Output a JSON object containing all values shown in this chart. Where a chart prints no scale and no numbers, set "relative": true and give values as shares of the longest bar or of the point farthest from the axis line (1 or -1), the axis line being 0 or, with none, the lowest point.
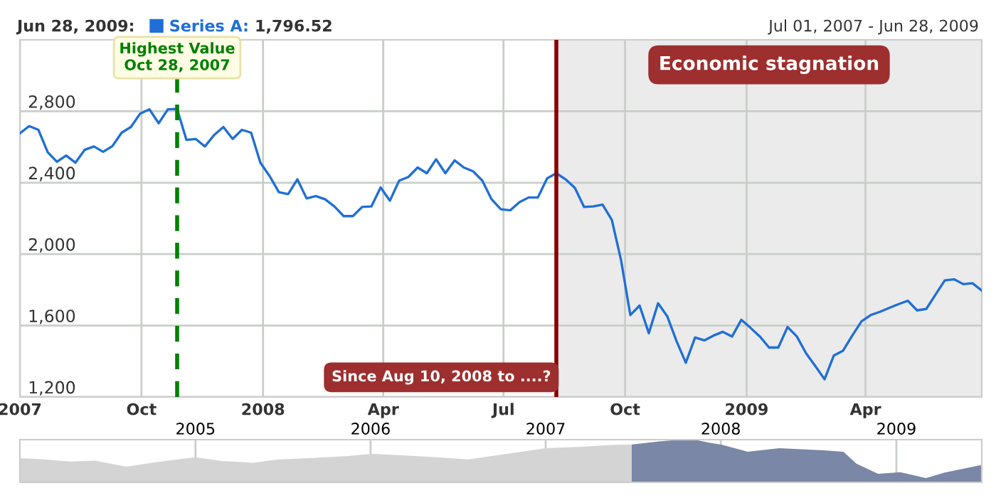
{
  "chart_data": [
    {
      "type": "line",
      "title": "Jun 28, 2009:",
      "subtitle": "Jul 01, 2007 - Jun 28, 2009",
      "annotations": [
        "1,796.52"
      ],
      "x": [
        "2007-07-01",
        "2007-07-08",
        "2007-07-15",
        "2007-07-22",
        "2007-07-29",
        "2007-08-05",
        "2007-08-12",
        "2007-08-19",
        "2007-08-26",
        "2007-09-02",
        "2007-09-09",
        "2007-09-16",
        "2007-09-23",
        "2007-09-30",
        "2007-10-07",
        "2007-10-14",
        "2007-10-21",
        "2007-10-28",
        "2007-11-04",
        "2007-11-11",
        "2007-11-18",
        "2007-11-25",
        "2007-12-02",
        "2007-12-09",
        "2007-12-16",
        "2007-12-23",
        "2007-12-30",
        "2008-01-06",
        "2008-01-13",
        "2008-01-20",
        "2008-01-27",
        "2008-02-03",
        "2008-02-10",
        "2008-02-17",
        "2008-02-24",
        "2008-03-02",
        "2008-03-09",
        "2008-03-16",
        "2008-03-23",
        "2008-03-30",
        "2008-04-06",
        "2008-04-13",
        "2008-04-20",
        "2008-04-27",
        "2008-05-04",
        "2008-05-11",
        "2008-05-18",
        "2008-05-25",
        "2008-06-01",
        "2008-06-08",
        "2008-06-15",
        "2008-06-22",
        "2008-06-29",
        "2008-07-06",
        "2008-07-13",
        "2008-07-20",
        "2008-07-27",
        "2008-08-03",
        "2008-08-10",
        "2008-08-17",
        "2008-08-24",
        "2008-08-31",
        "2008-09-07",
        "2008-09-14",
        "2008-09-21",
        "2008-09-28",
        "2008-10-05",
        "2008-10-12",
        "2008-10-19",
        "2008-10-26",
        "2008-11-02",
        "2008-11-09",
        "2008-11-16",
        "2008-11-23",
        "2008-11-30",
        "2008-12-07",
        "2008-12-14",
        "2008-12-21",
        "2008-12-28",
        "2009-01-04",
        "2009-01-11",
        "2009-01-18",
        "2009-01-25",
        "2009-02-01",
        "2009-02-08",
        "2009-02-15",
        "2009-02-22",
        "2009-03-01",
        "2009-03-08",
        "2009-03-15",
        "2009-03-22",
        "2009-03-29",
        "2009-04-05",
        "2009-04-12",
        "2009-04-19",
        "2009-04-26",
        "2009-05-03",
        "2009-05-10",
        "2009-05-17",
        "2009-05-24",
        "2009-05-31",
        "2009-06-07",
        "2009-06-14",
        "2009-06-21",
        "2009-06-28"
      ],
      "series": [
        {
          "name": "Series A:",
          "color": "#1f6fd6",
          "values": [
            2677,
            2717,
            2696,
            2571,
            2517,
            2552,
            2512,
            2584,
            2603,
            2573,
            2605,
            2680,
            2712,
            2787,
            2811,
            2733,
            2811,
            2813,
            2640,
            2645,
            2603,
            2667,
            2712,
            2645,
            2696,
            2680,
            2512,
            2437,
            2347,
            2336,
            2419,
            2312,
            2325,
            2307,
            2267,
            2213,
            2213,
            2264,
            2267,
            2373,
            2299,
            2411,
            2432,
            2485,
            2453,
            2531,
            2453,
            2525,
            2485,
            2464,
            2411,
            2307,
            2251,
            2245,
            2291,
            2317,
            2317,
            2424,
            2453,
            2419,
            2371,
            2264,
            2267,
            2277,
            2192,
            1965,
            1659,
            1712,
            1557,
            1725,
            1651,
            1512,
            1392,
            1533,
            1517,
            1544,
            1565,
            1539,
            1632,
            1587,
            1539,
            1477,
            1477,
            1592,
            1539,
            1445,
            1373,
            1299,
            1432,
            1459,
            1544,
            1624,
            1659,
            1677,
            1699,
            1720,
            1739,
            1685,
            1693,
            1773,
            1853,
            1859,
            1832,
            1837,
            1796.52
          ]
        }
      ],
      "xlim": [
        "2007-07-01",
        "2009-06-28"
      ],
      "xticks": [
        {
          "value": "2007-07-01",
          "label": "2007"
        },
        {
          "value": "2007-10-01",
          "label": "Oct"
        },
        {
          "value": "2008-01-01",
          "label": "2008"
        },
        {
          "value": "2008-04-01",
          "label": "Apr"
        },
        {
          "value": "2008-07-01",
          "label": "Jul"
        },
        {
          "value": "2008-10-01",
          "label": "Oct"
        },
        {
          "value": "2009-01-01",
          "label": "2009"
        },
        {
          "value": "2009-04-01",
          "label": "Apr"
        }
      ],
      "ylim": [
        1200,
        3200
      ],
      "yticks": [
        {
          "value": 1200,
          "label": "1,200"
        },
        {
          "value": 1600,
          "label": "1,600"
        },
        {
          "value": 2000,
          "label": "2,000"
        },
        {
          "value": 2400,
          "label": "2,400"
        },
        {
          "value": 2800,
          "label": "2,800"
        }
      ],
      "grid": true,
      "legend": "top left",
      "bands": [
        {
          "axis": "x",
          "from": "2008-08-10",
          "to": "2009-06-28",
          "label": "Economic stagnation",
          "color": "#ebebeb"
        }
      ],
      "ref_lines": [
        {
          "axis": "x",
          "value": "2007-10-28",
          "label": "Highest Value\nOct 28, 2007",
          "color": "#008000",
          "line_style": "dashed"
        },
        {
          "axis": "x",
          "value": "2008-08-10",
          "label": "Since Aug 10, 2008 to ....?",
          "color": "#8b0000",
          "line_style": "solid"
        }
      ]
    },
    {
      "type": "area",
      "relative": true,
      "series": [
        {
          "color": "#d4d4d4",
          "x": [
            "2004-01-01",
            "2004-02-20",
            "2004-04-14",
            "2004-06-05",
            "2004-08-10",
            "2004-10-02",
            "2005-01-01",
            "2005-02-25",
            "2005-05-01",
            "2005-06-23",
            "2005-08-28",
            "2005-11-15",
            "2006-01-05",
            "2006-03-01",
            "2006-05-19",
            "2006-07-24",
            "2006-10-12",
            "2007-01-01",
            "2007-03-08",
            "2007-05-25",
            "2007-07-01"
          ],
          "values": [
            0.55,
            0.52,
            0.47,
            0.49,
            0.35,
            0.44,
            0.57,
            0.48,
            0.44,
            0.52,
            0.55,
            0.6,
            0.65,
            0.62,
            0.57,
            0.52,
            0.65,
            0.78,
            0.81,
            0.86,
            0.87
          ]
        },
        {
          "color": "#7b87a6",
          "x": [
            "2007-07-01",
            "2007-08-25",
            "2007-10-30",
            "2007-12-08",
            "2008-01-04",
            "2008-02-26",
            "2008-05-02",
            "2008-08-03",
            "2008-09-12",
            "2008-10-09",
            "2008-11-24",
            "2009-01-09",
            "2009-03-03",
            "2009-04-12",
            "2009-06-28"
          ],
          "values": [
            0.87,
            0.94,
            1,
            0.91,
            0.86,
            0.7,
            0.78,
            0.73,
            0.7,
            0.42,
            0.18,
            0.22,
            0.08,
            0.21,
            0.39
          ]
        }
      ],
      "xlim": [
        "2004-01-01",
        "2009-06-28"
      ],
      "xticks": [
        {
          "value": "2005-01-01",
          "label": "2005"
        },
        {
          "value": "2006-01-01",
          "label": "2006"
        },
        {
          "value": "2007-01-01",
          "label": "2007"
        },
        {
          "value": "2008-01-01",
          "label": "2008"
        },
        {
          "value": "2009-01-01",
          "label": "2009"
        }
      ],
      "grid": "x",
      "tick_labels": "x"
    }
  ]
}
